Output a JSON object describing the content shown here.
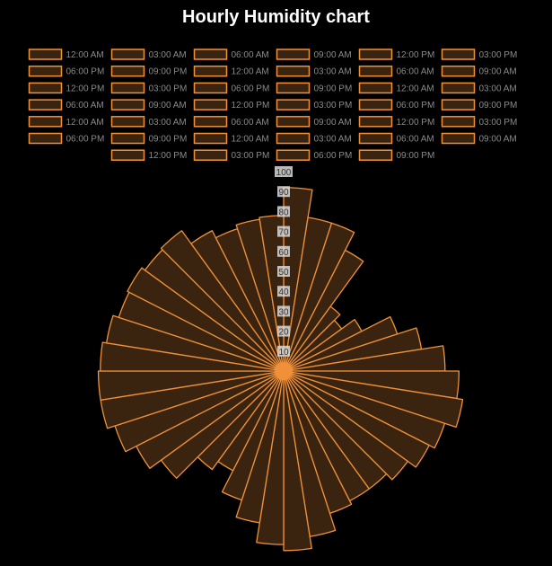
{
  "chart_data": {
    "type": "polarArea",
    "title": "Hourly Humidity chart",
    "colors": {
      "background": "#000000",
      "fill": "#3a2410",
      "stroke": "#f0913a",
      "title": "#ffffff",
      "legend_text": "#8a8a8a",
      "tick_box": "#d9d9d9",
      "tick_text": "#333333"
    },
    "r_ticks": [
      "10",
      "20",
      "30",
      "40",
      "50",
      "60",
      "70",
      "80",
      "90",
      "100"
    ],
    "r_range": [
      0,
      100
    ],
    "grid": false,
    "legend_position": "top",
    "categories": [
      "12:00 AM",
      "03:00 AM",
      "06:00 AM",
      "09:00 AM",
      "12:00 PM",
      "03:00 PM",
      "06:00 PM",
      "09:00 PM",
      "12:00 AM",
      "03:00 AM",
      "06:00 AM",
      "09:00 AM",
      "12:00 PM",
      "03:00 PM",
      "06:00 PM",
      "09:00 PM",
      "12:00 AM",
      "03:00 AM",
      "06:00 AM",
      "09:00 AM",
      "12:00 PM",
      "03:00 PM",
      "06:00 PM",
      "09:00 PM",
      "12:00 AM",
      "03:00 AM",
      "06:00 AM",
      "09:00 AM",
      "12:00 PM",
      "03:00 PM",
      "06:00 PM",
      "09:00 PM",
      "12:00 AM",
      "03:00 AM",
      "06:00 AM",
      "09:00 AM",
      "12:00 PM",
      "03:00 PM",
      "06:00 PM",
      "09:00 PM"
    ],
    "values": [
      92,
      78,
      78,
      68,
      40,
      36,
      44,
      60,
      70,
      81,
      88,
      91,
      85,
      82,
      77,
      73,
      73,
      75,
      84,
      90,
      87,
      77,
      68,
      56,
      61,
      76,
      83,
      89,
      93,
      93,
      92,
      90,
      87,
      88,
      86,
      87,
      79,
      75,
      77,
      78
    ]
  }
}
